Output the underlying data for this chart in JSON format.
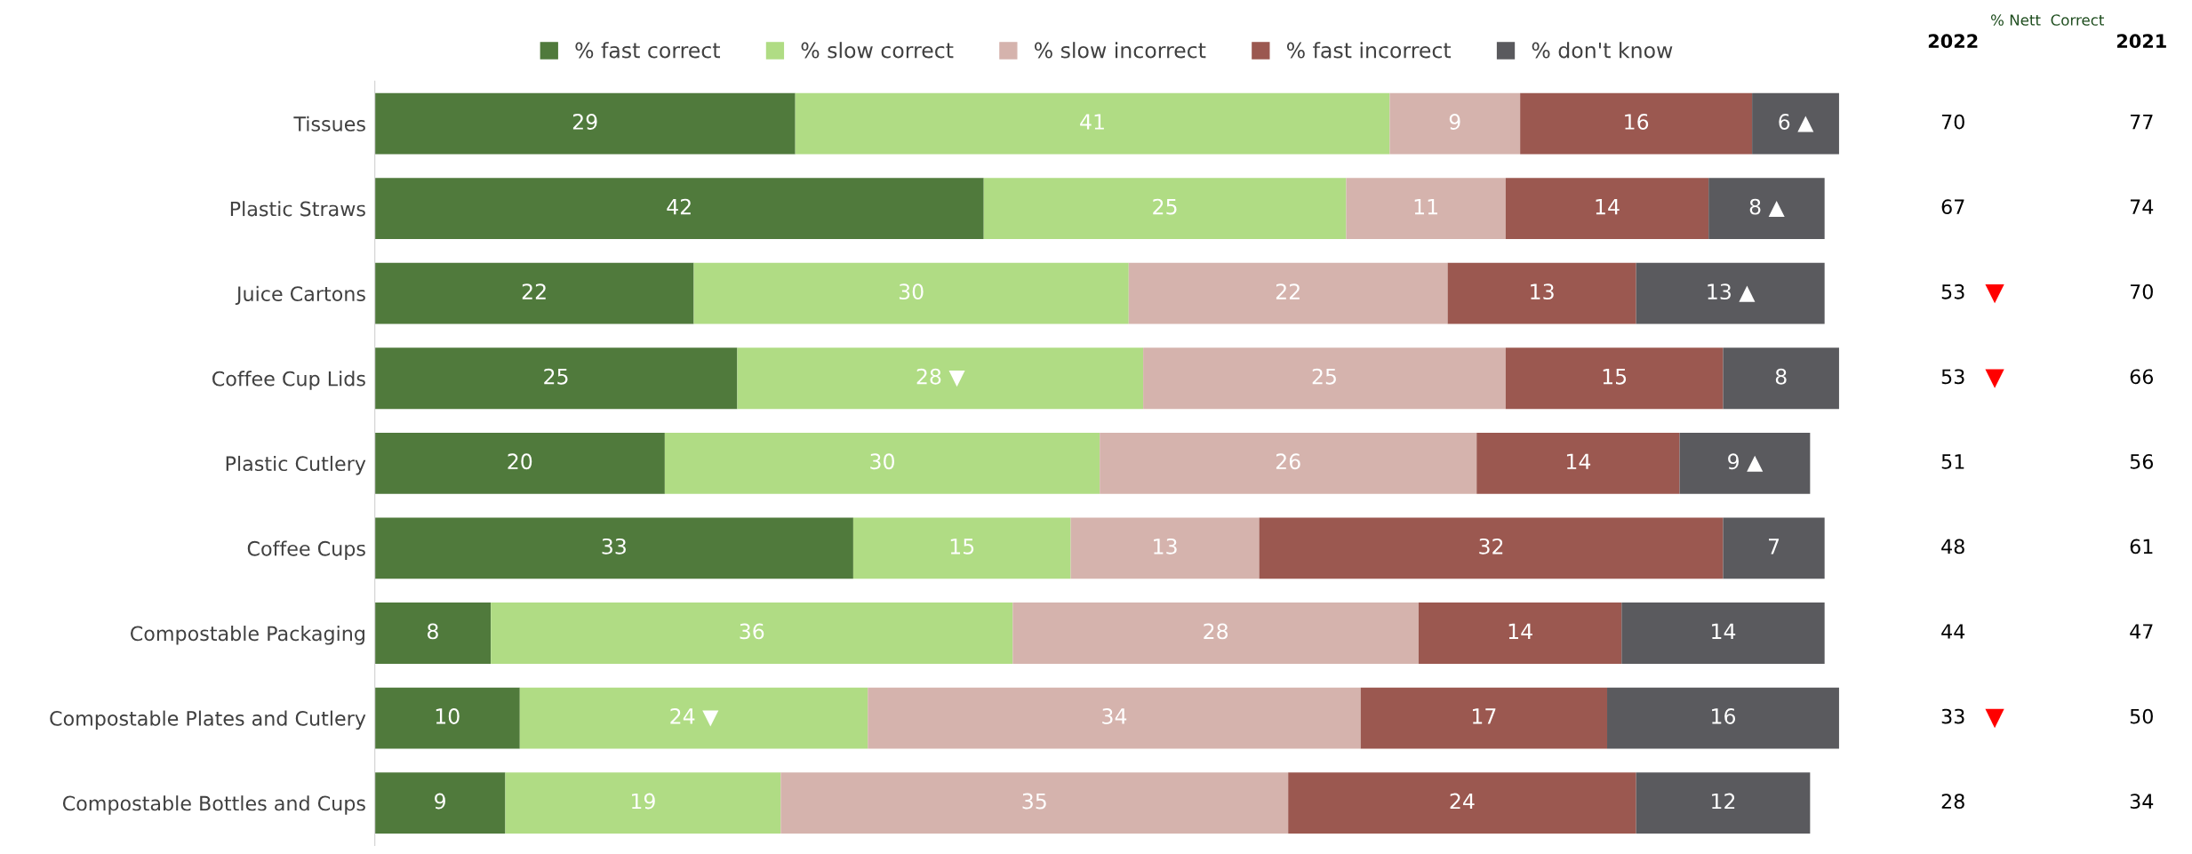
{
  "chart_data": {
    "type": "bar",
    "orientation": "horizontal",
    "stacked": true,
    "legend": "top",
    "grid": false,
    "tick_labels": "y",
    "xlim": [
      0,
      101
    ],
    "categories": [
      "Tissues",
      "Plastic Straws",
      "Juice Cartons",
      "Coffee Cup Lids",
      "Plastic Cutlery",
      "Coffee Cups",
      "Compostable Packaging",
      "Compostable Plates and Cutlery",
      "Compostable Bottles and Cups"
    ],
    "series": [
      {
        "name": "% fast correct",
        "color": "#507a3c",
        "values": [
          29,
          42,
          22,
          25,
          20,
          33,
          8,
          10,
          9
        ],
        "value_labels": [
          "29",
          "42",
          "22",
          "25",
          "20",
          "33",
          "8",
          "10",
          "9"
        ]
      },
      {
        "name": "% slow correct",
        "color": "#b0dc84",
        "values": [
          41,
          25,
          30,
          28,
          30,
          15,
          36,
          24,
          19
        ],
        "value_labels": [
          "41",
          "25",
          "30",
          "28 ▼",
          "30",
          "15",
          "36",
          "24 ▼",
          "19"
        ]
      },
      {
        "name": "% slow incorrect",
        "color": "#d5b3ad",
        "values": [
          9,
          11,
          22,
          25,
          26,
          13,
          28,
          34,
          35
        ],
        "value_labels": [
          "9",
          "11",
          "22",
          "25",
          "26",
          "13",
          "28",
          "34",
          "35"
        ]
      },
      {
        "name": "% fast incorrect",
        "color": "#9b5850",
        "values": [
          16,
          14,
          13,
          15,
          14,
          32,
          14,
          17,
          24
        ],
        "value_labels": [
          "16",
          "14",
          "13",
          "15",
          "14",
          "32",
          "14",
          "17",
          "24"
        ]
      },
      {
        "name": "% don't know",
        "color": "#5a5a5e",
        "values": [
          6,
          8,
          13,
          8,
          9,
          7,
          14,
          16,
          12
        ],
        "value_labels": [
          "6 ▲",
          "8 ▲",
          "13 ▲",
          "8",
          "9 ▲",
          "7",
          "14",
          "16",
          "12"
        ]
      }
    ],
    "annotations": [
      "% Nett  Correct",
      "2022",
      "2021",
      "70",
      "77",
      "67",
      "74",
      "53 ▼",
      "70",
      "53 ▼",
      "66",
      "51",
      "56",
      "48",
      "61",
      "44",
      "47",
      "33 ▼",
      "50",
      "28",
      "34"
    ]
  }
}
